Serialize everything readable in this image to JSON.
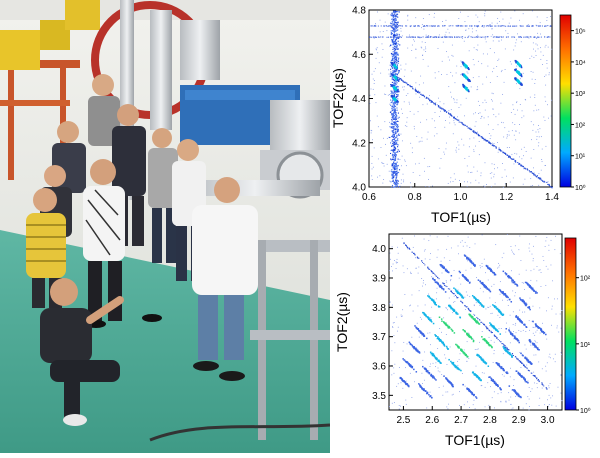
{
  "photo": {
    "subject": "group-photo-lab"
  },
  "chart_data": [
    {
      "type": "heatmap",
      "xlabel": "TOF1(µs)",
      "ylabel": "TOF2(µs)",
      "xlim": [
        0.6,
        1.4
      ],
      "ylim": [
        4.0,
        4.8
      ],
      "xticks": [
        "0.6",
        "0.8",
        "1.0",
        "1.2",
        "1.4"
      ],
      "yticks": [
        "4.0",
        "4.2",
        "4.4",
        "4.6",
        "4.8"
      ],
      "colorbar": {
        "scale": "log",
        "ticks": [
          "10⁰",
          "10¹",
          "10²",
          "10³",
          "10⁴",
          "10⁵"
        ]
      },
      "features": [
        {
          "kind": "vertical-band",
          "x": 0.71,
          "y_range": [
            4.0,
            4.8
          ]
        },
        {
          "kind": "horizontal-line",
          "y": 4.73
        },
        {
          "kind": "horizontal-line",
          "y": 4.68
        },
        {
          "kind": "diagonal-line",
          "from": [
            0.72,
            4.5
          ],
          "to": [
            1.4,
            4.0
          ]
        },
        {
          "kind": "island-group",
          "x": 0.71,
          "y_values": [
            4.55,
            4.5,
            4.45,
            4.4
          ]
        },
        {
          "kind": "island-group",
          "x": 1.02,
          "y_values": [
            4.55,
            4.5,
            4.45
          ]
        },
        {
          "kind": "island-group",
          "x": 1.25,
          "y_values": [
            4.56,
            4.52,
            4.48
          ]
        }
      ]
    },
    {
      "type": "heatmap",
      "xlabel": "TOF1(µs)",
      "ylabel": "TOF2(µs)",
      "xlim": [
        2.45,
        3.05
      ],
      "ylim": [
        3.45,
        4.05
      ],
      "xticks": [
        "2.5",
        "2.6",
        "2.7",
        "2.8",
        "2.9",
        "3.0"
      ],
      "yticks": [
        "3.5",
        "3.6",
        "3.7",
        "3.8",
        "3.9",
        "4.0"
      ],
      "colorbar": {
        "scale": "log",
        "ticks": [
          "10⁰",
          "10¹",
          "10²"
        ]
      },
      "features": [
        {
          "kind": "diagonal-stripes",
          "slope": -1,
          "x_range": [
            2.5,
            3.0
          ],
          "y_range": [
            3.5,
            4.0
          ]
        },
        {
          "kind": "hotspot",
          "x": 2.72,
          "y": 3.72
        }
      ]
    }
  ]
}
